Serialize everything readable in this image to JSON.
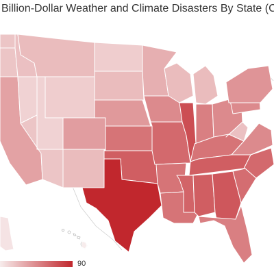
{
  "title": "Billion-Dollar Weather and Climate Disasters By State (CPI-",
  "legend": {
    "max_label": "90",
    "min_value": 0,
    "max_value": 90,
    "color_low": "#f7ecec",
    "color_high": "#c1272d"
  },
  "map": {
    "type": "choropleth",
    "region": "United States (partial view)",
    "states": [
      {
        "id": "WA",
        "value": 18
      },
      {
        "id": "OR",
        "value": 18
      },
      {
        "id": "CA",
        "value": 34
      },
      {
        "id": "NV",
        "value": 12
      },
      {
        "id": "ID",
        "value": 20
      },
      {
        "id": "MT",
        "value": 22
      },
      {
        "id": "WY",
        "value": 14
      },
      {
        "id": "UT",
        "value": 12
      },
      {
        "id": "AZ",
        "value": 18
      },
      {
        "id": "CO",
        "value": 36
      },
      {
        "id": "NM",
        "value": 22
      },
      {
        "id": "ND",
        "value": 14
      },
      {
        "id": "SD",
        "value": 22
      },
      {
        "id": "NE",
        "value": 38
      },
      {
        "id": "KS",
        "value": 55
      },
      {
        "id": "OK",
        "value": 65
      },
      {
        "id": "TX",
        "value": 90
      },
      {
        "id": "MN",
        "value": 28
      },
      {
        "id": "IA",
        "value": 45
      },
      {
        "id": "MO",
        "value": 60
      },
      {
        "id": "AR",
        "value": 55
      },
      {
        "id": "LA",
        "value": 55
      },
      {
        "id": "WI",
        "value": 22
      },
      {
        "id": "IL",
        "value": 72
      },
      {
        "id": "MI",
        "value": 22
      },
      {
        "id": "IN",
        "value": 50
      },
      {
        "id": "OH",
        "value": 45
      },
      {
        "id": "KY",
        "value": 55
      },
      {
        "id": "TN",
        "value": 65
      },
      {
        "id": "MS",
        "value": 62
      },
      {
        "id": "AL",
        "value": 65
      },
      {
        "id": "GA",
        "value": 68
      },
      {
        "id": "FL",
        "value": 50
      },
      {
        "id": "SC",
        "value": 58
      },
      {
        "id": "NC",
        "value": 60
      },
      {
        "id": "VA",
        "value": 45
      },
      {
        "id": "WV",
        "value": 20
      },
      {
        "id": "PA",
        "value": 45
      },
      {
        "id": "NY",
        "value": 40
      },
      {
        "id": "AK",
        "value": 4
      },
      {
        "id": "HI",
        "value": 0
      }
    ]
  }
}
